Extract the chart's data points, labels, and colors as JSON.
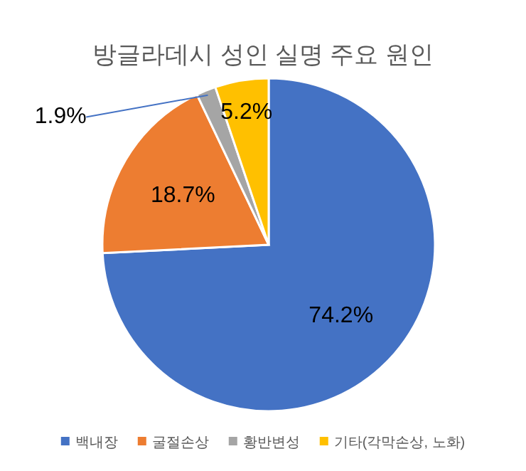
{
  "chart_data": {
    "type": "pie",
    "title": "방글라데시 성인 실명 주요 원인",
    "categories": [
      "백내장",
      "굴절손상",
      "황반변성",
      "기타(각막손상, 노화)"
    ],
    "values": [
      74.2,
      18.7,
      1.9,
      5.2
    ],
    "colors": [
      "#4472c4",
      "#ed7d31",
      "#a5a5a5",
      "#ffc000"
    ],
    "value_labels": [
      "74.2%",
      "18.7%",
      "1.9%",
      "5.2%"
    ],
    "legend": "bottom"
  }
}
